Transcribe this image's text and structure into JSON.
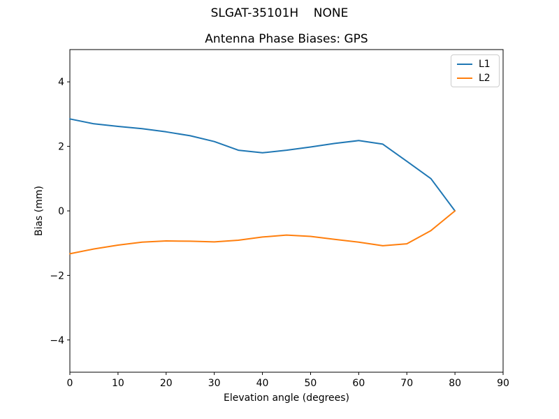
{
  "figure": {
    "suptitle": "SLGAT-35101H    NONE",
    "background": "#ffffff"
  },
  "chart_data": {
    "type": "line",
    "title": "Antenna Phase Biases: GPS",
    "xlabel": "Elevation angle (degrees)",
    "ylabel": "Bias (mm)",
    "xlim": [
      0,
      90
    ],
    "ylim": [
      -5,
      5
    ],
    "xticks": [
      0,
      10,
      20,
      30,
      40,
      50,
      60,
      70,
      80,
      90
    ],
    "yticks": [
      -4,
      -2,
      0,
      2,
      4
    ],
    "ytick_labels": [
      "−4",
      "−2",
      "0",
      "2",
      "4"
    ],
    "grid": false,
    "axis_color": "#000000",
    "tick_font_px": 14,
    "legend": {
      "position": "upper right",
      "entries": [
        "L1",
        "L2"
      ]
    },
    "x": [
      0,
      5,
      10,
      15,
      20,
      25,
      30,
      35,
      40,
      45,
      50,
      55,
      60,
      65,
      70,
      75,
      80
    ],
    "series": [
      {
        "name": "L1",
        "color": "#1f77b4",
        "values": [
          2.85,
          2.7,
          2.62,
          2.55,
          2.45,
          2.33,
          2.15,
          1.88,
          1.8,
          1.88,
          1.98,
          2.09,
          2.18,
          2.07,
          1.54,
          1.0,
          0.0
        ]
      },
      {
        "name": "L2",
        "color": "#ff7f0e",
        "values": [
          -1.33,
          -1.18,
          -1.06,
          -0.97,
          -0.93,
          -0.94,
          -0.96,
          -0.91,
          -0.81,
          -0.75,
          -0.79,
          -0.88,
          -0.97,
          -1.08,
          -1.02,
          -0.61,
          0.0
        ]
      }
    ]
  }
}
